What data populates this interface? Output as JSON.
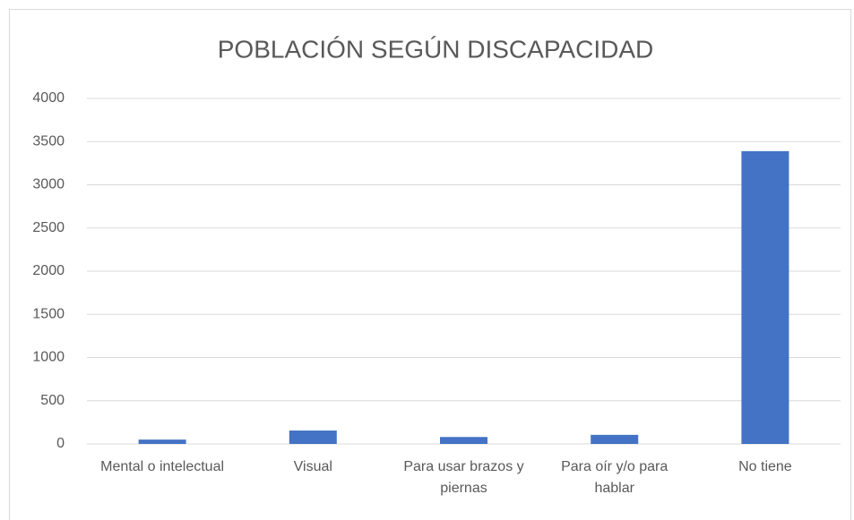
{
  "chart_data": {
    "type": "bar",
    "title": "POBLACIÓN SEGÚN DISCAPACIDAD",
    "categories": [
      "Mental o intelectual",
      "Visual",
      "Para usar brazos y piernas",
      "Para oír y/o para hablar",
      "No tiene"
    ],
    "values": [
      50,
      155,
      80,
      105,
      3390
    ],
    "color": "#4472c4",
    "ylim": [
      0,
      4000
    ],
    "yticks": [
      0,
      500,
      1000,
      1500,
      2000,
      2500,
      3000,
      3500,
      4000
    ],
    "grid": true
  }
}
